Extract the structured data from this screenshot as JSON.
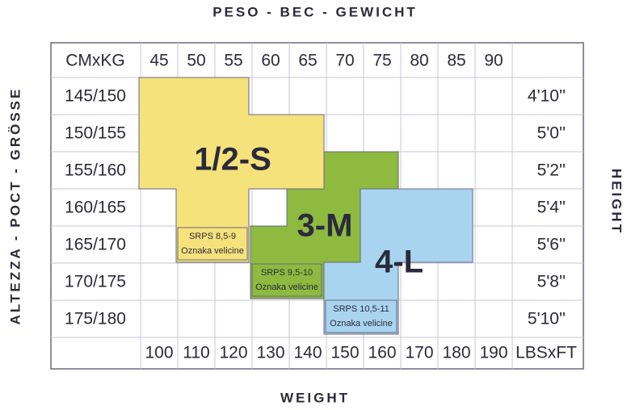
{
  "header": {
    "top": "PESO - BEC - GEWICHT",
    "bottom": "WEIGHT",
    "left": "ALTEZZA - POCT - GRÖSSE",
    "right": "HEIGHT"
  },
  "table": {
    "corner_top": "CMxKG",
    "corner_bottom": "LBSxFT",
    "kg": [
      45,
      50,
      55,
      60,
      65,
      70,
      75,
      80,
      85,
      90
    ],
    "lbs": [
      100,
      110,
      120,
      130,
      140,
      150,
      160,
      170,
      180,
      190
    ],
    "cm": [
      "145/150",
      "150/155",
      "155/160",
      "160/165",
      "165/170",
      "170/175",
      "175/180"
    ],
    "ft": [
      "4'10''",
      "5'0''",
      "5'2''",
      "5'4''",
      "5'6''",
      "5'8''",
      "5'10''"
    ]
  },
  "sizes": [
    {
      "label": "1/2-S",
      "code": "SRPS 8,5-9",
      "note": "Oznaka velicine"
    },
    {
      "label": "3-M",
      "code": "SRPS 9,5-10",
      "note": "Oznaka velicine"
    },
    {
      "label": "4-L",
      "code": "SRPS 10,5-11",
      "note": "Oznaka velicine"
    }
  ]
}
